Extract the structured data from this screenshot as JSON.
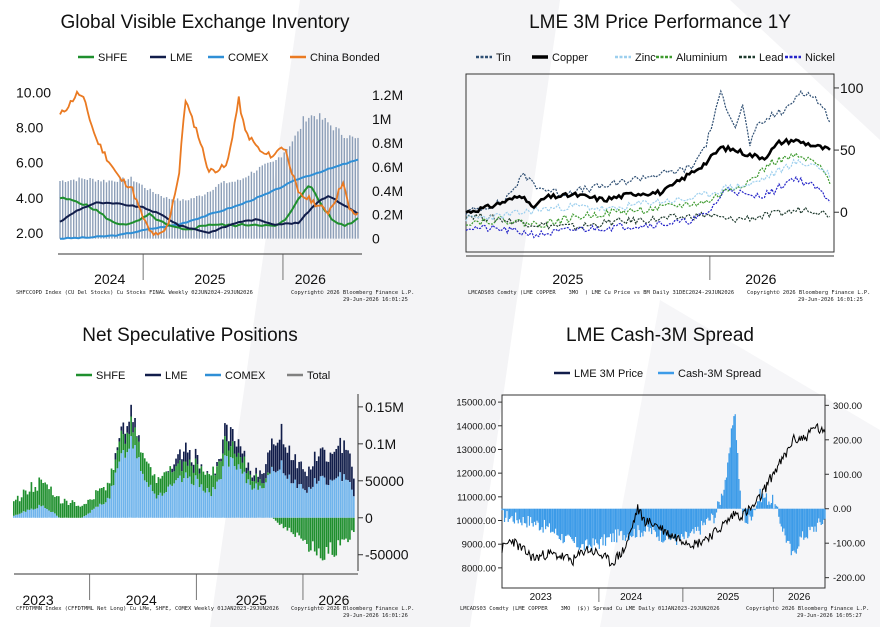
{
  "colors": {
    "shfe": "#1f8f2e",
    "lme": "#111d4a",
    "comex": "#2f8fd6",
    "china": "#ea7a22",
    "total": "#808080",
    "tin": "#2f4f73",
    "copper": "#000000",
    "zinc": "#9ccfee",
    "aluminium": "#3d9a2e",
    "lead": "#1f3b2e",
    "nickel": "#2424c8",
    "spread": "#3c9be8",
    "background_mark": "#f3f3f5"
  },
  "chart_data": [
    {
      "id": "inventory",
      "type": "bar",
      "title": "Global Visible Exchange Inventory",
      "legend": [
        {
          "name": "SHFE",
          "key": "shfe"
        },
        {
          "name": "LME",
          "key": "lme"
        },
        {
          "name": "COMEX",
          "key": "comex"
        },
        {
          "name": "China Bonded",
          "key": "china"
        }
      ],
      "left_ticks": [
        "10.00",
        "8.00",
        "6.00",
        "4.00",
        "2.00"
      ],
      "left_tick_values": [
        10,
        8,
        6,
        4,
        2
      ],
      "left_range": [
        1.2,
        10.6
      ],
      "right_ticks": [
        "1.2M",
        "1M",
        "0.8M",
        "0.6M",
        "0.4M",
        "0.2M",
        "0"
      ],
      "right_tick_values": [
        1.2,
        1.0,
        0.8,
        0.6,
        0.4,
        0.2,
        0
      ],
      "right_range": [
        -0.07,
        1.31
      ],
      "x_labels": [
        "2024",
        "2025",
        "2026"
      ],
      "x_label_t": [
        0.17,
        0.5,
        0.83
      ],
      "x_dividers_t": [
        0.28,
        0.74
      ],
      "x_range": [
        0,
        1
      ],
      "total_bars_M": {
        "t": [
          0,
          0.08,
          0.16,
          0.24,
          0.3,
          0.36,
          0.42,
          0.48,
          0.54,
          0.6,
          0.66,
          0.72,
          0.76,
          0.8,
          0.82,
          0.86,
          0.9,
          0.94,
          1.0
        ],
        "v": [
          0.5,
          0.52,
          0.5,
          0.52,
          0.42,
          0.35,
          0.33,
          0.38,
          0.48,
          0.5,
          0.6,
          0.66,
          0.78,
          0.92,
          1.05,
          1.07,
          1.0,
          0.92,
          0.85
        ]
      },
      "comex_M": {
        "t": [
          0,
          0.1,
          0.2,
          0.3,
          0.4,
          0.5,
          0.6,
          0.7,
          0.8,
          0.9,
          1.0
        ],
        "v": [
          0.0,
          0.01,
          0.03,
          0.08,
          0.12,
          0.2,
          0.28,
          0.38,
          0.5,
          0.58,
          0.66
        ]
      },
      "shfe_M": {
        "t": [
          0,
          0.06,
          0.12,
          0.18,
          0.24,
          0.3,
          0.36,
          0.42,
          0.5,
          0.58,
          0.66,
          0.72,
          0.76,
          0.8,
          0.84,
          0.88,
          0.92,
          0.96,
          1.0
        ],
        "v": [
          0.34,
          0.31,
          0.24,
          0.13,
          0.12,
          0.2,
          0.11,
          0.07,
          0.12,
          0.11,
          0.12,
          0.1,
          0.16,
          0.34,
          0.45,
          0.27,
          0.14,
          0.11,
          0.17
        ]
      },
      "lme_M": {
        "t": [
          0,
          0.06,
          0.12,
          0.2,
          0.28,
          0.34,
          0.4,
          0.5,
          0.6,
          0.66,
          0.72,
          0.8,
          0.86,
          0.9,
          0.94,
          1.0
        ],
        "v": [
          0.14,
          0.24,
          0.3,
          0.29,
          0.26,
          0.2,
          0.11,
          0.05,
          0.14,
          0.16,
          0.12,
          0.13,
          0.3,
          0.36,
          0.3,
          0.21
        ]
      },
      "china_left": {
        "t": [
          0,
          0.03,
          0.06,
          0.08,
          0.12,
          0.16,
          0.2,
          0.24,
          0.27,
          0.3,
          0.33,
          0.36,
          0.4,
          0.42,
          0.44,
          0.46,
          0.5,
          0.56,
          0.6,
          0.62,
          0.68,
          0.72,
          0.74,
          0.76,
          0.8,
          0.84,
          0.88,
          0.9,
          0.93,
          0.95,
          0.97,
          1.0
        ],
        "v": [
          8.7,
          9.3,
          10.0,
          9.6,
          7.4,
          6.2,
          5.1,
          4.6,
          3.2,
          2.1,
          1.8,
          2.3,
          5.4,
          9.7,
          8.6,
          7.8,
          5.5,
          5.8,
          9.6,
          7.8,
          6.5,
          6.4,
          7.0,
          6.6,
          4.2,
          3.9,
          3.4,
          3.2,
          4.1,
          5.0,
          3.3,
          3.0
        ]
      },
      "footer_left": "SHFCCOPD Index (CU Del Stocks) Cu Stocks FINAL Weekly 02JUN2024-29JUN2026",
      "footer_right": "Copyright© 2026 Bloomberg Finance L.P.",
      "footer_date": "29-Jun-2026 16:01:25"
    },
    {
      "id": "performance",
      "type": "line",
      "title": "LME 3M Price Performance 1Y",
      "legend": [
        {
          "name": "Tin",
          "key": "tin",
          "style": "dot"
        },
        {
          "name": "Copper",
          "key": "copper",
          "style": "bold"
        },
        {
          "name": "Zinc",
          "key": "zinc",
          "style": "dot"
        },
        {
          "name": "Aluminium",
          "key": "aluminium",
          "style": "dot"
        },
        {
          "name": "Lead",
          "key": "lead",
          "style": "dot"
        },
        {
          "name": "Nickel",
          "key": "nickel",
          "style": "dot"
        }
      ],
      "y_ticks": [
        "100",
        "50",
        "0"
      ],
      "y_tick_values": [
        100,
        50,
        0
      ],
      "y_range": [
        -32,
        108
      ],
      "x_labels": [
        "2025",
        "2026"
      ],
      "x_label_t": [
        0.28,
        0.81
      ],
      "x_dividers_t": [
        0.67
      ],
      "x_range": [
        0,
        1
      ],
      "series": {
        "tin": {
          "t": [
            0,
            0.1,
            0.16,
            0.2,
            0.26,
            0.32,
            0.4,
            0.48,
            0.56,
            0.62,
            0.66,
            0.7,
            0.74,
            0.76,
            0.78,
            0.8,
            0.84,
            0.88,
            0.92,
            0.96,
            1.0
          ],
          "v": [
            0,
            8,
            30,
            20,
            15,
            18,
            22,
            28,
            32,
            36,
            55,
            95,
            70,
            85,
            55,
            68,
            78,
            82,
            98,
            92,
            75
          ]
        },
        "copper": {
          "t": [
            0,
            0.06,
            0.12,
            0.16,
            0.18,
            0.22,
            0.3,
            0.38,
            0.46,
            0.54,
            0.6,
            0.66,
            0.7,
            0.74,
            0.78,
            0.82,
            0.86,
            0.9,
            0.94,
            1.0
          ],
          "v": [
            0,
            4,
            10,
            14,
            3,
            12,
            14,
            10,
            15,
            16,
            28,
            40,
            52,
            50,
            46,
            44,
            56,
            58,
            55,
            50
          ]
        },
        "zinc": {
          "t": [
            0,
            0.1,
            0.2,
            0.3,
            0.4,
            0.5,
            0.6,
            0.66,
            0.72,
            0.78,
            0.84,
            0.9,
            0.96,
            1.0
          ],
          "v": [
            -5,
            -3,
            2,
            5,
            2,
            8,
            10,
            14,
            20,
            22,
            30,
            40,
            38,
            30
          ]
        },
        "aluminium": {
          "t": [
            0,
            0.1,
            0.2,
            0.3,
            0.4,
            0.5,
            0.6,
            0.66,
            0.72,
            0.78,
            0.84,
            0.9,
            0.96,
            1.0
          ],
          "v": [
            -8,
            -6,
            -10,
            -4,
            0,
            2,
            6,
            8,
            18,
            25,
            40,
            45,
            40,
            25
          ]
        },
        "lead": {
          "t": [
            0,
            0.1,
            0.2,
            0.3,
            0.4,
            0.5,
            0.6,
            0.66,
            0.72,
            0.8,
            0.88,
            0.94,
            1.0
          ],
          "v": [
            -2,
            -6,
            -10,
            -12,
            -8,
            -6,
            -4,
            -2,
            -6,
            -4,
            0,
            3,
            -2
          ]
        },
        "nickel": {
          "t": [
            0,
            0.1,
            0.2,
            0.3,
            0.4,
            0.5,
            0.6,
            0.66,
            0.72,
            0.78,
            0.84,
            0.9,
            0.96,
            1.0
          ],
          "v": [
            -12,
            -14,
            -18,
            -14,
            -12,
            -10,
            -8,
            -2,
            20,
            12,
            16,
            28,
            20,
            10
          ]
        }
      },
      "footer_left": "LMCADS03 Comdty (LME COPPER    3MO  ) LME Cu Price vs BM Daily 31DEC2024-29JUN2026",
      "footer_right": "Copyright© 2026 Bloomberg Finance L.P.",
      "footer_date": "29-Jun-2026 16:01:25"
    },
    {
      "id": "positions",
      "type": "bar",
      "title": "Net Speculative Positions",
      "legend": [
        {
          "name": "SHFE",
          "key": "shfe"
        },
        {
          "name": "LME",
          "key": "lme"
        },
        {
          "name": "COMEX",
          "key": "comex"
        },
        {
          "name": "Total",
          "key": "total"
        }
      ],
      "y_ticks": [
        "0.15M",
        "0.1M",
        "50000",
        "0",
        "-50000"
      ],
      "y_tick_values": [
        150000,
        100000,
        50000,
        0,
        -50000
      ],
      "y_range": [
        -72000,
        162000
      ],
      "x_labels": [
        "2023",
        "2024",
        "2025",
        "2026"
      ],
      "x_label_t": [
        0.07,
        0.37,
        0.69,
        0.93
      ],
      "x_dividers_t": [
        0.22,
        0.53,
        0.84
      ],
      "x_range": [
        0,
        1
      ],
      "total": {
        "t": [
          0,
          0.04,
          0.08,
          0.12,
          0.16,
          0.2,
          0.24,
          0.28,
          0.32,
          0.34,
          0.36,
          0.38,
          0.42,
          0.46,
          0.5,
          0.54,
          0.58,
          0.6,
          0.62,
          0.66,
          0.7,
          0.74,
          0.78,
          0.82,
          0.86,
          0.9,
          0.94,
          0.98,
          1.0
        ],
        "v": [
          5000,
          20000,
          30000,
          10000,
          -20000,
          0,
          20000,
          40000,
          120000,
          145000,
          130000,
          80000,
          40000,
          60000,
          90000,
          80000,
          50000,
          70000,
          120000,
          95000,
          60000,
          70000,
          120000,
          85000,
          60000,
          90000,
          80000,
          110000,
          60000
        ]
      },
      "comex_frac": {
        "t": [
          0,
          0.2,
          0.3,
          0.4,
          0.5,
          0.6,
          0.7,
          0.8,
          0.9,
          1.0
        ],
        "v": [
          0.5,
          0.6,
          0.7,
          0.75,
          0.6,
          0.65,
          0.7,
          0.6,
          0.6,
          0.55
        ]
      },
      "shfe": {
        "t": [
          0,
          0.05,
          0.1,
          0.15,
          0.2,
          0.3,
          0.4,
          0.5,
          0.6,
          0.7,
          0.76,
          0.8,
          0.84,
          0.88,
          0.92,
          0.96,
          1.0
        ],
        "v": [
          20000,
          30000,
          35000,
          25000,
          15000,
          25000,
          30000,
          20000,
          25000,
          15000,
          0,
          -15000,
          -25000,
          -45000,
          -50000,
          -40000,
          -20000
        ]
      },
      "footer_left": "CFFDTMMN Index (CFFDTMML Net Long) Cu LMe, SHFE, COMEX Weekly 01JAN2023-29JUN2026",
      "footer_right": "Copyright© 2026 Bloomberg Finance L.P.",
      "footer_date": "29-Jun-2026 16:01:26"
    },
    {
      "id": "spread",
      "type": "line",
      "title": "LME Cash-3M Spread",
      "legend": [
        {
          "name": "LME 3M Price",
          "key": "lme3m"
        },
        {
          "name": "Cash-3M Spread",
          "key": "spread"
        }
      ],
      "left_ticks": [
        "15000.00",
        "14000.00",
        "13000.00",
        "12000.00",
        "11000.00",
        "10000.00",
        "9000.00",
        "8000.00"
      ],
      "left_tick_values": [
        15000,
        14000,
        13000,
        12000,
        11000,
        10000,
        9000,
        8000
      ],
      "left_range": [
        7150,
        15300
      ],
      "right_ticks": [
        "300.00",
        "200.00",
        "100.00",
        "0.00",
        "-100.00",
        "-200.00"
      ],
      "right_tick_values": [
        300,
        200,
        100,
        0,
        -100,
        -200
      ],
      "right_range": [
        -230,
        330
      ],
      "x_labels": [
        "2023",
        "2024",
        "2025",
        "2026"
      ],
      "x_label_t": [
        0.12,
        0.4,
        0.7,
        0.92
      ],
      "x_dividers_t": [
        0.3,
        0.56,
        0.84
      ],
      "x_range": [
        0,
        1
      ],
      "price": {
        "t": [
          0,
          0.03,
          0.06,
          0.1,
          0.14,
          0.18,
          0.22,
          0.26,
          0.3,
          0.34,
          0.38,
          0.4,
          0.42,
          0.44,
          0.48,
          0.52,
          0.56,
          0.6,
          0.66,
          0.7,
          0.72,
          0.74,
          0.78,
          0.8,
          0.84,
          0.88,
          0.9,
          0.94,
          0.97,
          1.0
        ],
        "v": [
          8800,
          9200,
          8800,
          8400,
          8600,
          8500,
          8300,
          8800,
          8600,
          8200,
          8800,
          9600,
          10500,
          10000,
          9800,
          9400,
          9200,
          9000,
          9500,
          10000,
          10300,
          10200,
          10600,
          11000,
          12000,
          12800,
          13400,
          13500,
          14000,
          13600
        ]
      },
      "spread": {
        "t": [
          0,
          0.05,
          0.1,
          0.15,
          0.2,
          0.25,
          0.3,
          0.35,
          0.4,
          0.45,
          0.5,
          0.55,
          0.6,
          0.63,
          0.66,
          0.68,
          0.7,
          0.72,
          0.74,
          0.76,
          0.8,
          0.84,
          0.86,
          0.9,
          0.92,
          0.96,
          1.0
        ],
        "v": [
          -20,
          -30,
          -40,
          -60,
          -90,
          -110,
          -100,
          -80,
          -70,
          -60,
          -80,
          -90,
          -70,
          -40,
          -20,
          40,
          120,
          300,
          0,
          -40,
          40,
          20,
          -30,
          -140,
          -90,
          -60,
          -30
        ]
      },
      "footer_left": "LMCADS03 Comdty (LME COPPER    3MO  ($)) Spread Cu LME Daily 01JAN2023-29JUN2026",
      "footer_right": "Copyright© 2026 Bloomberg Finance L.P.",
      "footer_date": "29-Jun-2026 16:05:27"
    }
  ]
}
